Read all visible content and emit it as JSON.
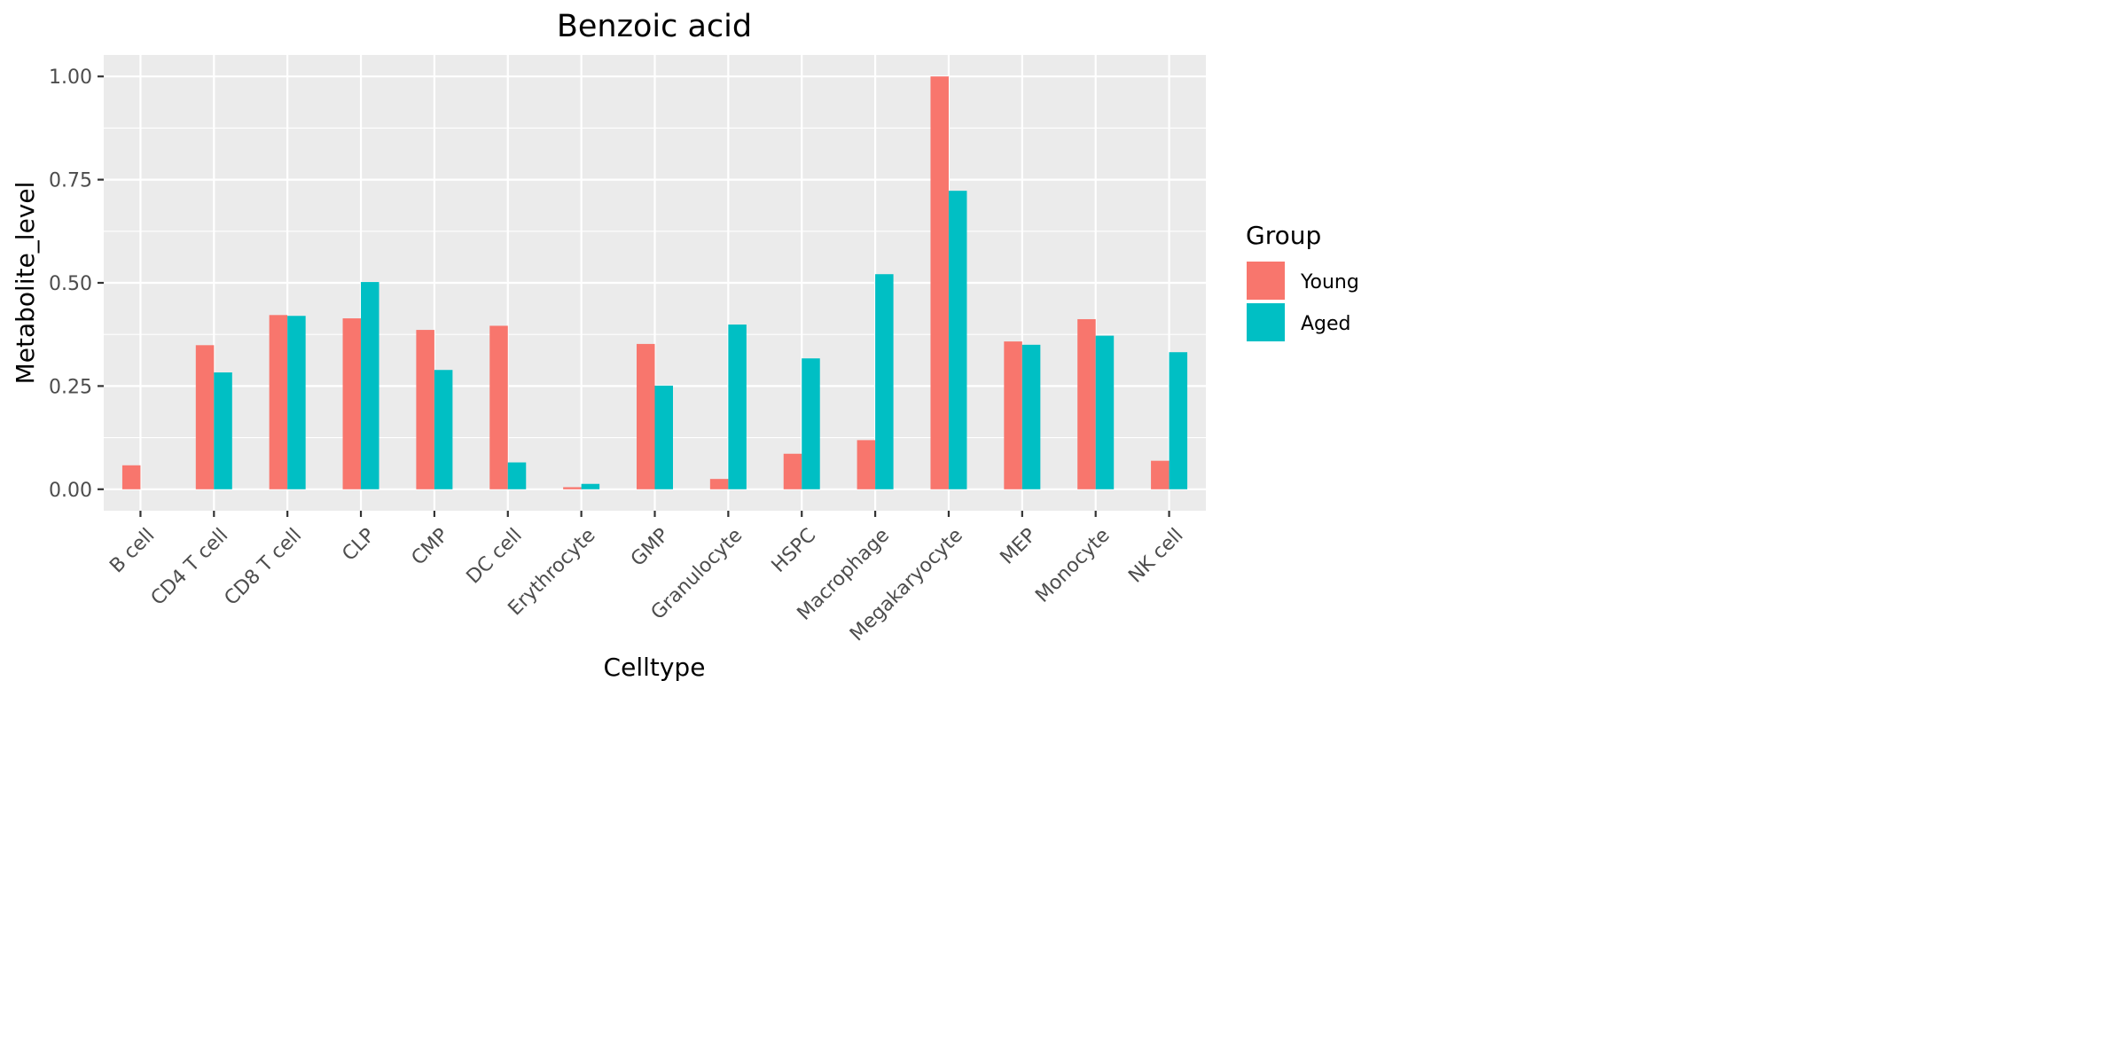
{
  "chart_data": {
    "type": "bar",
    "title": "Benzoic acid",
    "xlabel": "Celltype",
    "ylabel": "Metabolite_level",
    "ylim": [
      -0.052,
      1.052
    ],
    "yticks": [
      0.0,
      0.25,
      0.5,
      0.75,
      1.0
    ],
    "ytick_labels": [
      "0.00",
      "0.25",
      "0.50",
      "0.75",
      "1.00"
    ],
    "grid": true,
    "legend": {
      "title": "Group",
      "position": "right"
    },
    "categories": [
      "B cell",
      "CD4 T cell",
      "CD8 T cell",
      "CLP",
      "CMP",
      "DC cell",
      "Erythrocyte",
      "GMP",
      "Granulocyte",
      "HSPC",
      "Macrophage",
      "Megakaryocyte",
      "MEP",
      "Monocyte",
      "NK cell"
    ],
    "series": [
      {
        "name": "Young",
        "color": "#F8766D",
        "values": [
          0.058,
          0.349,
          0.422,
          0.414,
          0.386,
          0.396,
          0.005,
          0.352,
          0.025,
          0.086,
          0.119,
          1.0,
          0.358,
          0.412,
          0.069
        ]
      },
      {
        "name": "Aged",
        "color": "#00BFC4",
        "values": [
          0.0,
          0.283,
          0.42,
          0.502,
          0.289,
          0.065,
          0.013,
          0.251,
          0.399,
          0.317,
          0.521,
          0.723,
          0.35,
          0.372,
          0.332
        ]
      }
    ]
  }
}
